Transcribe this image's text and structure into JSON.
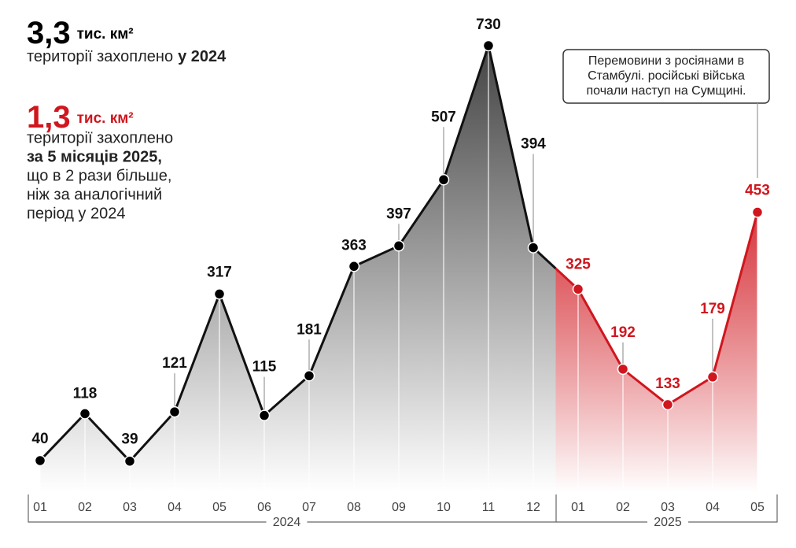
{
  "chart_data": {
    "type": "line",
    "headline_2024": {
      "amount": "3,3",
      "unit": "тис. км²",
      "text": "території захоплено",
      "emphasis": "у 2024"
    },
    "headline_2025": {
      "amount": "1,3",
      "unit": "тис. км²",
      "text": "території захоплено",
      "emphasis": "за 5 місяців 2025,",
      "lines": [
        "що в 2 рази більше,",
        "ніж за аналогічний",
        "період у 2024"
      ]
    },
    "annotation": {
      "lines": [
        "Перемовини з росіянами в",
        "Стамбулі. російські війська",
        "почали наступ на Сумщині."
      ]
    },
    "categories": [
      "01",
      "02",
      "03",
      "04",
      "05",
      "06",
      "07",
      "08",
      "09",
      "10",
      "11",
      "12",
      "01",
      "02",
      "03",
      "04",
      "05"
    ],
    "series": [
      {
        "name": "2024",
        "color": "#111111",
        "values": [
          40,
          118,
          39,
          121,
          317,
          115,
          181,
          363,
          397,
          507,
          730,
          394,
          null,
          null,
          null,
          null,
          null
        ]
      },
      {
        "name": "2025",
        "color": "#d0161e",
        "values": [
          null,
          null,
          null,
          null,
          null,
          null,
          null,
          null,
          null,
          null,
          null,
          null,
          325,
          192,
          133,
          179,
          453
        ]
      }
    ]
  }
}
